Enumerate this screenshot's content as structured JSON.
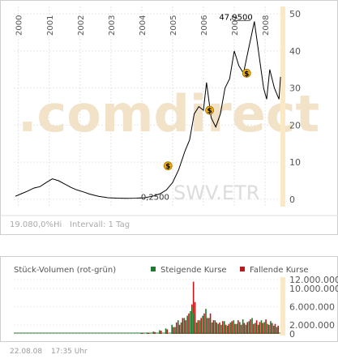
{
  "chart_data": [
    {
      "type": "line",
      "x_ticks": [
        "2000",
        "2001",
        "2002",
        "2003",
        "2004",
        "2005",
        "2006",
        "2007",
        "2008"
      ],
      "y_ticks": [
        0,
        10,
        20,
        30,
        40,
        50
      ],
      "ylim": [
        -2,
        52
      ],
      "xlim": [
        1999.85,
        2008.55
      ],
      "grid": true,
      "series": [
        {
          "x": [
            1999.9,
            2000.1,
            2000.3,
            2000.5,
            2000.7,
            2000.9,
            2001.1,
            2001.3,
            2001.5,
            2001.7,
            2001.9,
            2002.1,
            2002.3,
            2002.6,
            2002.9,
            2003.2,
            2003.5,
            2003.8,
            2004.1,
            2004.4,
            2004.6,
            2004.8,
            2005.0,
            2005.2,
            2005.4,
            2005.55,
            2005.7,
            2005.85,
            2006.0,
            2006.1,
            2006.25,
            2006.4,
            2006.55,
            2006.7,
            2006.85,
            2007.0,
            2007.15,
            2007.3,
            2007.45,
            2007.55,
            2007.65,
            2007.75,
            2007.85,
            2007.95,
            2008.05,
            2008.15,
            2008.3,
            2008.45,
            2008.5
          ],
          "y": [
            0.8,
            1.5,
            2.2,
            3.0,
            3.4,
            4.5,
            5.5,
            5.0,
            4.1,
            3.2,
            2.5,
            2.0,
            1.4,
            0.8,
            0.4,
            0.3,
            0.25,
            0.3,
            0.4,
            0.9,
            1.5,
            2.5,
            4.5,
            8.0,
            13.0,
            16.0,
            23.0,
            25.0,
            24.0,
            31.5,
            22.0,
            19.5,
            23.0,
            30.0,
            32.5,
            40.0,
            36.0,
            34.0,
            40.0,
            44.0,
            47.95,
            42.0,
            36.0,
            30.0,
            27.0,
            35.0,
            30.0,
            27.0,
            33.0
          ]
        }
      ],
      "annotations": [
        {
          "label": "47,9500",
          "x": 2007.65,
          "y": 47.95
        },
        {
          "label": "0,2500",
          "x": 2003.5,
          "y": 0.25
        }
      ],
      "event_markers": [
        {
          "symbol": "$",
          "x": 2004.85,
          "y": 9.0
        },
        {
          "symbol": "$",
          "x": 2006.2,
          "y": 24.0
        },
        {
          "symbol": "$",
          "x": 2007.4,
          "y": 34.0
        }
      ],
      "watermark_text": ".comdirect",
      "ticker_text": "SWV.ETR",
      "interval_text": "19.080,0%Hi",
      "interval_label": "Intervall: 1 Tag"
    },
    {
      "type": "bar",
      "title": "Stück-Volumen (rot-grün)",
      "legend": [
        {
          "name": "Steigende Kurse",
          "color": "#1e7a2e"
        },
        {
          "name": "Fallende Kurse",
          "color": "#c01818"
        }
      ],
      "legend_placement": "top-right",
      "y_ticks": [
        0,
        2000000,
        6000000,
        10000000,
        12000000
      ],
      "y_tick_labels": [
        "0",
        "2.000.000",
        "6.000.000",
        "10.000.000",
        "12.000.000"
      ],
      "ylim": [
        0,
        12500000
      ],
      "xlim": [
        1999.85,
        2008.55
      ],
      "x": [
        2004.0,
        2004.2,
        2004.4,
        2004.6,
        2004.8,
        2005.0,
        2005.1,
        2005.2,
        2005.3,
        2005.4,
        2005.5,
        2005.6,
        2005.65,
        2005.7,
        2005.8,
        2005.9,
        2006.0,
        2006.1,
        2006.2,
        2006.3,
        2006.4,
        2006.5,
        2006.6,
        2006.7,
        2006.8,
        2006.9,
        2007.0,
        2007.1,
        2007.2,
        2007.3,
        2007.4,
        2007.5,
        2007.6,
        2007.7,
        2007.8,
        2007.9,
        2008.0,
        2008.1,
        2008.2,
        2008.3,
        2008.4
      ],
      "values_up": [
        200000,
        300000,
        500000,
        800000,
        1200000,
        2000000,
        1500000,
        3000000,
        2500000,
        3500000,
        4000000,
        5000000,
        6000000,
        4500000,
        2500000,
        3000000,
        4000000,
        5500000,
        3500000,
        2500000,
        3000000,
        2200000,
        2000000,
        2800000,
        1800000,
        2500000,
        3000000,
        2200000,
        2600000,
        3200000,
        2000000,
        2800000,
        3500000,
        2400000,
        2000000,
        3000000,
        2600000,
        2200000,
        2800000,
        1800000,
        1500000
      ],
      "values_down": [
        150000,
        250000,
        400000,
        700000,
        1000000,
        1500000,
        2500000,
        2000000,
        3500000,
        3000000,
        4500000,
        6500000,
        11500000,
        7000000,
        3000000,
        3500000,
        4500000,
        3500000,
        4500000,
        3000000,
        2500000,
        2500000,
        2800000,
        2000000,
        2200000,
        2800000,
        2200000,
        3000000,
        2000000,
        2400000,
        2600000,
        3200000,
        2200000,
        3000000,
        2600000,
        2400000,
        3200000,
        2000000,
        2400000,
        2200000,
        1800000
      ]
    }
  ],
  "footer": {
    "date": "22.08.08",
    "time": "17:35 Uhr"
  }
}
